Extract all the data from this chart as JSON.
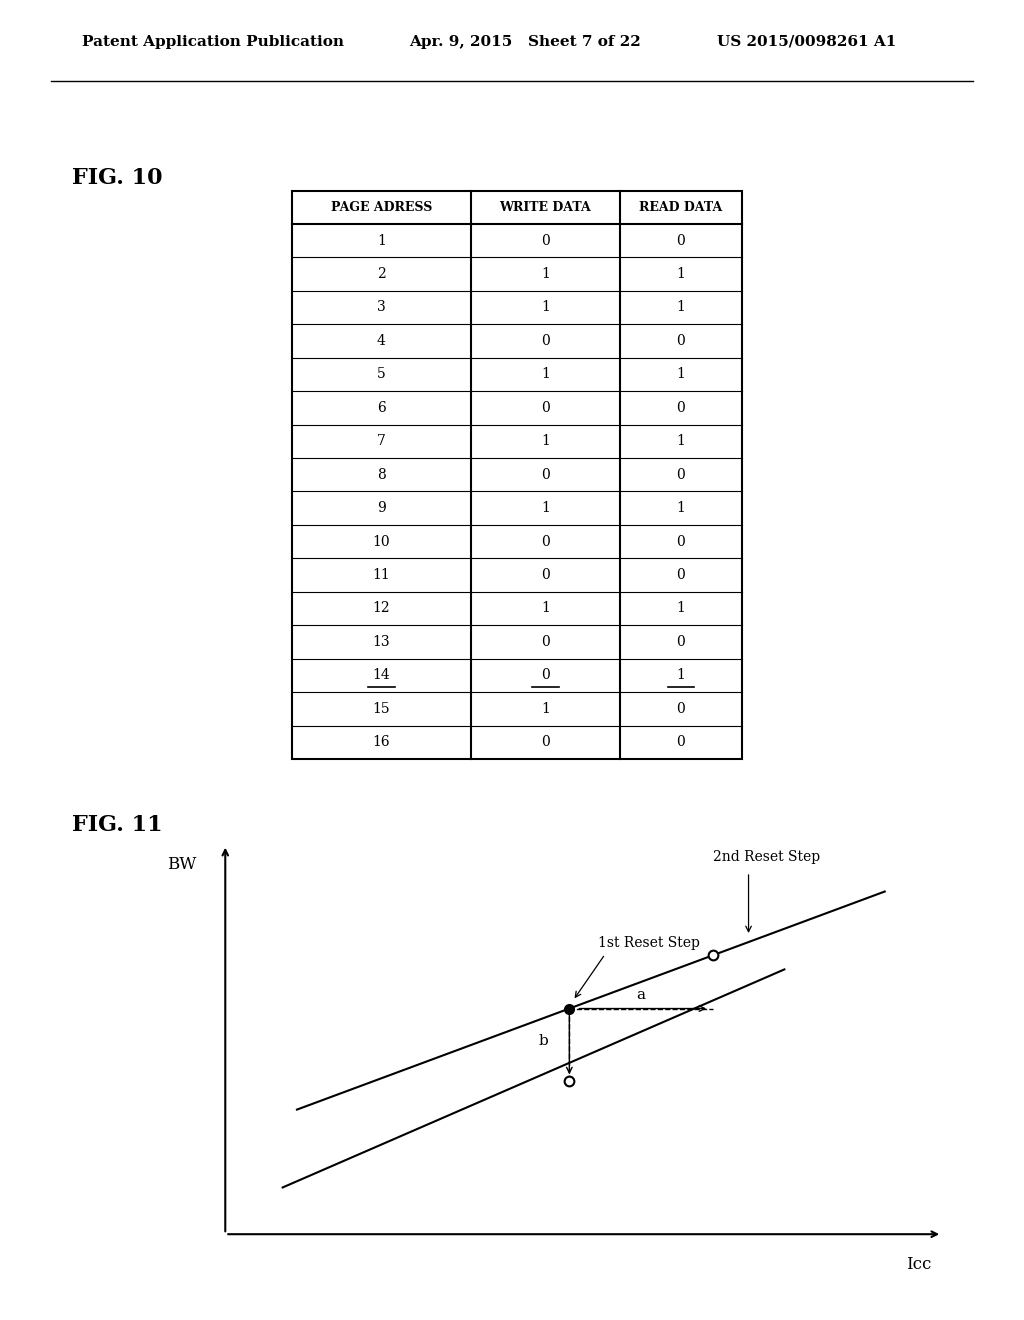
{
  "header_text": "Patent Application Publication",
  "date_text": "Apr. 9, 2015",
  "sheet_text": "Sheet 7 of 22",
  "patent_text": "US 2015/0098261 A1",
  "fig10_label": "FIG. 10",
  "fig11_label": "FIG. 11",
  "table_headers": [
    "PAGE ADRESS",
    "WRITE DATA",
    "READ DATA"
  ],
  "table_data": [
    [
      "1",
      "0",
      "0"
    ],
    [
      "2",
      "1",
      "1"
    ],
    [
      "3",
      "1",
      "1"
    ],
    [
      "4",
      "0",
      "0"
    ],
    [
      "5",
      "1",
      "1"
    ],
    [
      "6",
      "0",
      "0"
    ],
    [
      "7",
      "1",
      "1"
    ],
    [
      "8",
      "0",
      "0"
    ],
    [
      "9",
      "1",
      "1"
    ],
    [
      "10",
      "0",
      "0"
    ],
    [
      "11",
      "0",
      "0"
    ],
    [
      "12",
      "1",
      "1"
    ],
    [
      "13",
      "0",
      "0"
    ],
    [
      "14",
      "0",
      "1"
    ],
    [
      "15",
      "1",
      "0"
    ],
    [
      "16",
      "0",
      "0"
    ]
  ],
  "underline_row": 13,
  "bg_color": "#ffffff",
  "line_color": "#000000",
  "bw_label": "BW",
  "icc_label": "Icc",
  "label_1st_reset": "1st Reset Step",
  "label_2nd_reset": "2nd Reset Step",
  "label_a": "a",
  "label_b": "b"
}
